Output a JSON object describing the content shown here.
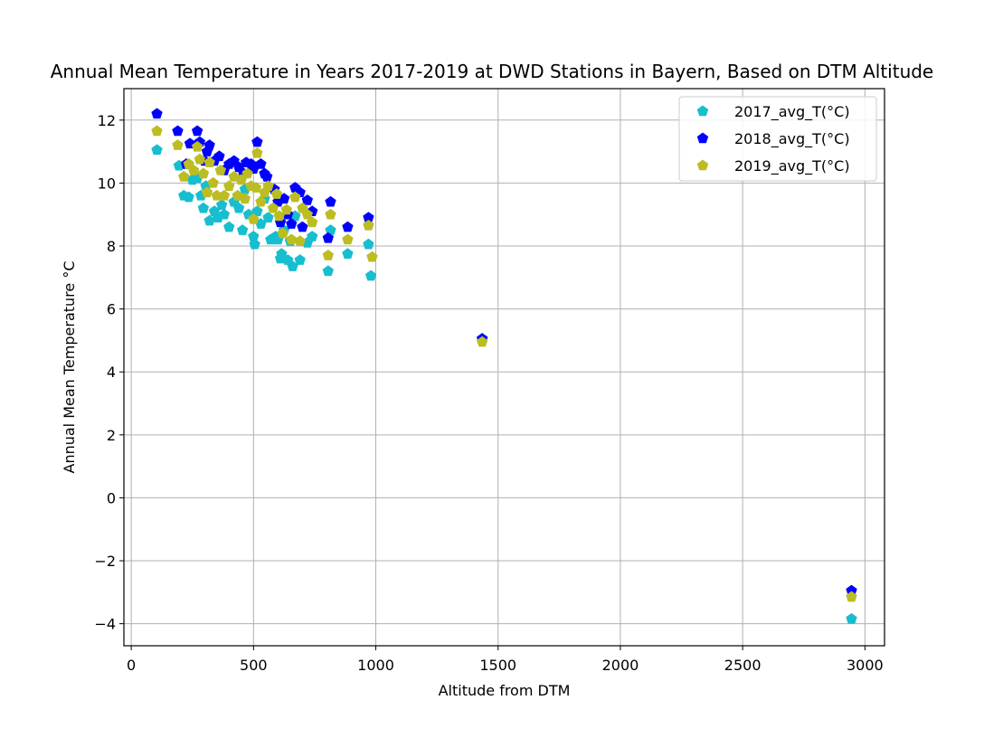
{
  "chart_data": {
    "type": "scatter",
    "title": "Annual Mean Temperature in Years 2017-2019 at DWD Stations in Bayern, Based on DTM Altitude",
    "xlabel": "Altitude from DTM",
    "ylabel": "Annual Mean Temperature °C",
    "xlim": [
      -30,
      3080
    ],
    "ylim": [
      -4.7,
      13.0
    ],
    "xticks": [
      0,
      500,
      1000,
      1500,
      2000,
      2500,
      3000
    ],
    "yticks": [
      -4,
      -2,
      0,
      2,
      4,
      6,
      8,
      10,
      12
    ],
    "grid": true,
    "legend_position": "top-right",
    "series": [
      {
        "name": "2017_avg_T(°C)",
        "color": "#17becf",
        "marker": "pentagon",
        "points": [
          [
            105,
            11.05
          ],
          [
            195,
            10.55
          ],
          [
            215,
            9.6
          ],
          [
            235,
            9.55
          ],
          [
            250,
            10.1
          ],
          [
            270,
            10.15
          ],
          [
            285,
            9.6
          ],
          [
            295,
            9.2
          ],
          [
            305,
            9.9
          ],
          [
            320,
            8.8
          ],
          [
            340,
            9.1
          ],
          [
            355,
            8.9
          ],
          [
            370,
            9.3
          ],
          [
            380,
            9.0
          ],
          [
            400,
            8.6
          ],
          [
            420,
            9.4
          ],
          [
            440,
            9.2
          ],
          [
            455,
            8.5
          ],
          [
            465,
            9.8
          ],
          [
            480,
            9.0
          ],
          [
            500,
            8.3
          ],
          [
            505,
            8.05
          ],
          [
            515,
            9.1
          ],
          [
            530,
            8.7
          ],
          [
            545,
            9.5
          ],
          [
            560,
            8.9
          ],
          [
            570,
            8.2
          ],
          [
            590,
            8.3
          ],
          [
            600,
            8.2
          ],
          [
            610,
            7.6
          ],
          [
            615,
            7.75
          ],
          [
            625,
            8.5
          ],
          [
            640,
            7.55
          ],
          [
            650,
            8.15
          ],
          [
            660,
            7.35
          ],
          [
            670,
            8.95
          ],
          [
            690,
            7.55
          ],
          [
            720,
            8.1
          ],
          [
            740,
            8.3
          ],
          [
            805,
            7.2
          ],
          [
            815,
            8.5
          ],
          [
            885,
            7.75
          ],
          [
            970,
            8.05
          ],
          [
            980,
            7.05
          ],
          [
            1435,
            5.05
          ],
          [
            2945,
            -3.85
          ]
        ]
      },
      {
        "name": "2018_avg_T(°C)",
        "color": "#0000ff",
        "marker": "pentagon",
        "points": [
          [
            105,
            12.2
          ],
          [
            190,
            11.65
          ],
          [
            225,
            10.6
          ],
          [
            240,
            11.25
          ],
          [
            270,
            11.65
          ],
          [
            280,
            11.3
          ],
          [
            300,
            10.7
          ],
          [
            310,
            11.0
          ],
          [
            320,
            11.2
          ],
          [
            340,
            10.7
          ],
          [
            360,
            10.85
          ],
          [
            380,
            10.4
          ],
          [
            400,
            10.6
          ],
          [
            420,
            10.7
          ],
          [
            440,
            10.5
          ],
          [
            460,
            10.3
          ],
          [
            470,
            10.65
          ],
          [
            490,
            10.6
          ],
          [
            500,
            10.45
          ],
          [
            515,
            11.3
          ],
          [
            530,
            10.6
          ],
          [
            545,
            10.3
          ],
          [
            555,
            10.2
          ],
          [
            585,
            9.8
          ],
          [
            600,
            9.4
          ],
          [
            610,
            8.75
          ],
          [
            625,
            9.5
          ],
          [
            640,
            9.0
          ],
          [
            655,
            8.7
          ],
          [
            670,
            9.85
          ],
          [
            690,
            9.7
          ],
          [
            700,
            8.6
          ],
          [
            720,
            9.45
          ],
          [
            740,
            9.1
          ],
          [
            805,
            8.25
          ],
          [
            815,
            9.4
          ],
          [
            885,
            8.6
          ],
          [
            970,
            8.9
          ],
          [
            1435,
            5.05
          ],
          [
            2945,
            -2.95
          ]
        ]
      },
      {
        "name": "2019_avg_T(°C)",
        "color": "#bcbd22",
        "marker": "pentagon",
        "points": [
          [
            105,
            11.65
          ],
          [
            190,
            11.2
          ],
          [
            215,
            10.2
          ],
          [
            235,
            10.6
          ],
          [
            255,
            10.4
          ],
          [
            270,
            11.15
          ],
          [
            280,
            10.75
          ],
          [
            295,
            10.3
          ],
          [
            310,
            9.7
          ],
          [
            320,
            10.65
          ],
          [
            335,
            10.0
          ],
          [
            350,
            9.6
          ],
          [
            365,
            10.4
          ],
          [
            380,
            9.6
          ],
          [
            400,
            9.9
          ],
          [
            420,
            10.2
          ],
          [
            435,
            9.6
          ],
          [
            450,
            10.1
          ],
          [
            465,
            9.5
          ],
          [
            475,
            10.3
          ],
          [
            490,
            9.9
          ],
          [
            500,
            8.85
          ],
          [
            510,
            9.85
          ],
          [
            515,
            10.95
          ],
          [
            530,
            9.4
          ],
          [
            545,
            9.7
          ],
          [
            560,
            9.9
          ],
          [
            580,
            9.2
          ],
          [
            595,
            9.65
          ],
          [
            605,
            8.95
          ],
          [
            620,
            8.4
          ],
          [
            635,
            9.15
          ],
          [
            655,
            8.2
          ],
          [
            670,
            9.55
          ],
          [
            690,
            8.15
          ],
          [
            700,
            9.2
          ],
          [
            720,
            9.0
          ],
          [
            740,
            8.75
          ],
          [
            805,
            7.7
          ],
          [
            815,
            9.0
          ],
          [
            885,
            8.2
          ],
          [
            970,
            8.65
          ],
          [
            985,
            7.65
          ],
          [
            1435,
            4.95
          ],
          [
            2945,
            -3.15
          ]
        ]
      }
    ]
  }
}
